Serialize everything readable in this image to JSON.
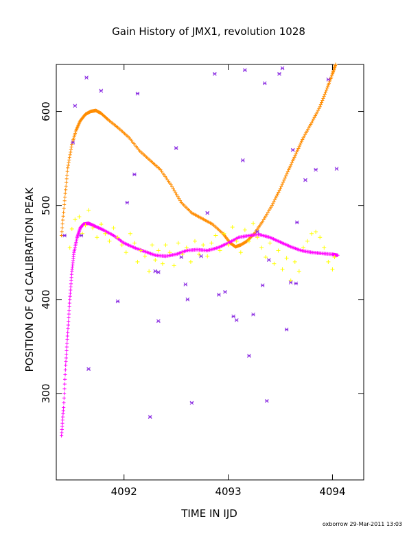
{
  "chart_data": {
    "type": "scatter",
    "title": "Gain History of JMX1, revolution 1028",
    "xlabel": "TIME IN IJD",
    "ylabel": "POSITION OF Cd CALIBRATION PEAK",
    "xlim": [
      4091.35,
      4094.3
    ],
    "ylim": [
      208,
      650
    ],
    "xticks": [
      {
        "value": 4092,
        "label": "4092"
      },
      {
        "value": 4093,
        "label": "4093"
      },
      {
        "value": 4094,
        "label": "4094"
      }
    ],
    "yticks": [
      {
        "value": 300,
        "label": "300"
      },
      {
        "value": 400,
        "label": "400"
      },
      {
        "value": 500,
        "label": "500"
      },
      {
        "value": 600,
        "label": "600"
      }
    ],
    "grid": false,
    "credit": "oxborrow 29-Mar-2011 13:03",
    "series": [
      {
        "marker": "plus",
        "color": "#ff8c00",
        "density": 320,
        "size": 2.6,
        "points": [
          [
            4091.4,
            468
          ],
          [
            4091.43,
            505
          ],
          [
            4091.46,
            540
          ],
          [
            4091.5,
            565
          ],
          [
            4091.54,
            580
          ],
          [
            4091.58,
            590
          ],
          [
            4091.63,
            597
          ],
          [
            4091.68,
            600
          ],
          [
            4091.73,
            601
          ],
          [
            4091.78,
            598
          ],
          [
            4091.85,
            591
          ],
          [
            4091.95,
            582
          ],
          [
            4092.05,
            572
          ],
          [
            4092.15,
            558
          ],
          [
            4092.25,
            548
          ],
          [
            4092.35,
            538
          ],
          [
            4092.45,
            522
          ],
          [
            4092.55,
            503
          ],
          [
            4092.65,
            492
          ],
          [
            4092.75,
            486
          ],
          [
            4092.85,
            480
          ],
          [
            4092.95,
            470
          ],
          [
            4093.02,
            460
          ],
          [
            4093.07,
            456
          ],
          [
            4093.12,
            458
          ],
          [
            4093.18,
            462
          ],
          [
            4093.25,
            470
          ],
          [
            4093.33,
            483
          ],
          [
            4093.42,
            500
          ],
          [
            4093.5,
            518
          ],
          [
            4093.58,
            538
          ],
          [
            4093.65,
            555
          ],
          [
            4093.72,
            572
          ],
          [
            4093.8,
            588
          ],
          [
            4093.88,
            605
          ],
          [
            4093.95,
            625
          ],
          [
            4094.0,
            640
          ],
          [
            4094.03,
            650
          ]
        ]
      },
      {
        "marker": "plus",
        "color": "#ff00ff",
        "density": 320,
        "size": 2.6,
        "points": [
          [
            4091.4,
            255
          ],
          [
            4091.42,
            285
          ],
          [
            4091.44,
            330
          ],
          [
            4091.46,
            365
          ],
          [
            4091.48,
            400
          ],
          [
            4091.5,
            430
          ],
          [
            4091.52,
            450
          ],
          [
            4091.55,
            466
          ],
          [
            4091.58,
            476
          ],
          [
            4091.61,
            480
          ],
          [
            4091.66,
            481
          ],
          [
            4091.72,
            478
          ],
          [
            4091.8,
            474
          ],
          [
            4091.9,
            468
          ],
          [
            4092.0,
            460
          ],
          [
            4092.1,
            455
          ],
          [
            4092.2,
            451
          ],
          [
            4092.3,
            447
          ],
          [
            4092.4,
            446
          ],
          [
            4092.5,
            448
          ],
          [
            4092.6,
            452
          ],
          [
            4092.7,
            453
          ],
          [
            4092.8,
            452
          ],
          [
            4092.9,
            455
          ],
          [
            4093.0,
            460
          ],
          [
            4093.1,
            466
          ],
          [
            4093.2,
            468
          ],
          [
            4093.3,
            469
          ],
          [
            4093.4,
            466
          ],
          [
            4093.5,
            461
          ],
          [
            4093.6,
            456
          ],
          [
            4093.7,
            452
          ],
          [
            4093.8,
            450
          ],
          [
            4093.9,
            449
          ],
          [
            4094.0,
            448
          ],
          [
            4094.05,
            447
          ]
        ]
      },
      {
        "marker": "plus",
        "color": "#ffff00",
        "density": 0,
        "size": 3,
        "points": [
          [
            4091.48,
            455
          ],
          [
            4091.5,
            475
          ],
          [
            4091.53,
            485
          ],
          [
            4091.57,
            488
          ],
          [
            4091.6,
            470
          ],
          [
            4091.63,
            479
          ],
          [
            4091.66,
            495
          ],
          [
            4091.7,
            476
          ],
          [
            4091.74,
            466
          ],
          [
            4091.78,
            480
          ],
          [
            4091.82,
            470
          ],
          [
            4091.86,
            462
          ],
          [
            4091.9,
            476
          ],
          [
            4091.94,
            466
          ],
          [
            4091.98,
            458
          ],
          [
            4092.02,
            450
          ],
          [
            4092.06,
            470
          ],
          [
            4092.1,
            460
          ],
          [
            4092.13,
            440
          ],
          [
            4092.16,
            452
          ],
          [
            4092.2,
            446
          ],
          [
            4092.24,
            430
          ],
          [
            4092.27,
            458
          ],
          [
            4092.3,
            442
          ],
          [
            4092.33,
            452
          ],
          [
            4092.37,
            438
          ],
          [
            4092.4,
            458
          ],
          [
            4092.44,
            450
          ],
          [
            4092.48,
            436
          ],
          [
            4092.52,
            460
          ],
          [
            4092.56,
            448
          ],
          [
            4092.6,
            455
          ],
          [
            4092.64,
            440
          ],
          [
            4092.68,
            462
          ],
          [
            4092.72,
            448
          ],
          [
            4092.76,
            458
          ],
          [
            4092.8,
            446
          ],
          [
            4092.84,
            460
          ],
          [
            4092.88,
            468
          ],
          [
            4092.92,
            452
          ],
          [
            4092.96,
            470
          ],
          [
            4093.0,
            458
          ],
          [
            4093.04,
            477
          ],
          [
            4093.08,
            462
          ],
          [
            4093.12,
            450
          ],
          [
            4093.16,
            474
          ],
          [
            4093.2,
            462
          ],
          [
            4093.24,
            481
          ],
          [
            4093.28,
            466
          ],
          [
            4093.32,
            455
          ],
          [
            4093.36,
            445
          ],
          [
            4093.4,
            460
          ],
          [
            4093.44,
            438
          ],
          [
            4093.48,
            452
          ],
          [
            4093.52,
            432
          ],
          [
            4093.56,
            444
          ],
          [
            4093.6,
            420
          ],
          [
            4093.64,
            440
          ],
          [
            4093.68,
            430
          ],
          [
            4093.72,
            455
          ],
          [
            4093.76,
            462
          ],
          [
            4093.8,
            470
          ],
          [
            4093.84,
            472
          ],
          [
            4093.88,
            466
          ],
          [
            4093.92,
            455
          ],
          [
            4093.96,
            440
          ],
          [
            4094.0,
            432
          ],
          [
            4094.02,
            445
          ]
        ]
      },
      {
        "marker": "x",
        "color": "#8a2be2",
        "density": 0,
        "size": 2.5,
        "points": [
          [
            4091.43,
            468
          ],
          [
            4091.51,
            567
          ],
          [
            4091.53,
            606
          ],
          [
            4091.59,
            468
          ],
          [
            4091.64,
            636
          ],
          [
            4091.66,
            326
          ],
          [
            4091.78,
            622
          ],
          [
            4091.94,
            398
          ],
          [
            4092.03,
            503
          ],
          [
            4092.1,
            533
          ],
          [
            4092.13,
            619
          ],
          [
            4092.25,
            275
          ],
          [
            4092.3,
            430
          ],
          [
            4092.33,
            377
          ],
          [
            4092.33,
            429
          ],
          [
            4092.5,
            561
          ],
          [
            4092.55,
            445
          ],
          [
            4092.59,
            416
          ],
          [
            4092.61,
            400
          ],
          [
            4092.65,
            290
          ],
          [
            4092.74,
            446
          ],
          [
            4092.8,
            492
          ],
          [
            4092.87,
            640
          ],
          [
            4092.91,
            405
          ],
          [
            4092.97,
            408
          ],
          [
            4093.05,
            382
          ],
          [
            4093.08,
            378
          ],
          [
            4093.14,
            548
          ],
          [
            4093.16,
            644
          ],
          [
            4093.2,
            340
          ],
          [
            4093.24,
            384
          ],
          [
            4093.28,
            472
          ],
          [
            4093.33,
            415
          ],
          [
            4093.35,
            630
          ],
          [
            4093.37,
            292
          ],
          [
            4093.39,
            442
          ],
          [
            4093.49,
            640
          ],
          [
            4093.52,
            646
          ],
          [
            4093.56,
            368
          ],
          [
            4093.6,
            418
          ],
          [
            4093.62,
            559
          ],
          [
            4093.65,
            417
          ],
          [
            4093.66,
            482
          ],
          [
            4093.84,
            538
          ],
          [
            4093.96,
            634
          ],
          [
            4094.04,
            539
          ],
          [
            4093.74,
            527
          ]
        ]
      }
    ]
  }
}
